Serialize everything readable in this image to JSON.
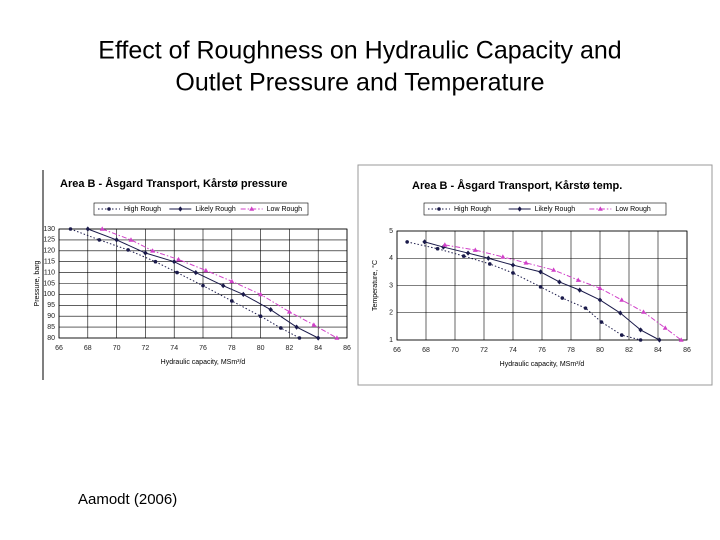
{
  "slide_title": [
    "Effect of Roughness on Hydraulic Capacity and",
    "Outlet Pressure and Temperature"
  ],
  "citation": "Aamodt (2006)",
  "chart_data": [
    {
      "type": "line",
      "title": "Area B - Åsgard Transport, Kårstø pressure",
      "x_label": "Hydraulic capacity, MSm³/d",
      "y_label": "Pressure, barg",
      "xlim": [
        66,
        86
      ],
      "xticks": [
        66,
        68,
        70,
        72,
        74,
        76,
        78,
        80,
        82,
        84,
        86
      ],
      "ylim": [
        80,
        130
      ],
      "yticks": [
        80,
        85,
        90,
        95,
        100,
        105,
        110,
        115,
        120,
        125,
        130
      ],
      "grid": true,
      "series": [
        {
          "name": "High Rough",
          "color": "#1a1a4a",
          "line_style": "dotted",
          "marker": "circle",
          "x": [
            66.8,
            68.8,
            70.8,
            72.7,
            74.2,
            76,
            78,
            80,
            81.4,
            82.7
          ],
          "values": [
            130,
            125,
            120.4,
            115,
            110,
            104,
            97,
            90,
            84.6,
            80
          ]
        },
        {
          "name": "Likely Rough",
          "color": "#1a1a4a",
          "line_style": "solid",
          "marker": "diamond",
          "x": [
            68,
            70,
            72,
            74,
            75.5,
            77.4,
            78.8,
            80.7,
            82.5,
            84
          ],
          "values": [
            130,
            125,
            119,
            115,
            110,
            104,
            100,
            93,
            85,
            80
          ]
        },
        {
          "name": "Low Rough",
          "color": "#d040c8",
          "line_style": "dashdot",
          "marker": "triangle",
          "x": [
            69,
            71,
            72.5,
            74.3,
            76.2,
            78,
            80,
            82,
            83.7,
            85.3
          ],
          "values": [
            130,
            125,
            120,
            116,
            111,
            106,
            100,
            92,
            86,
            80
          ]
        }
      ]
    },
    {
      "type": "line",
      "title": "Area B - Åsgard Transport, Kårstø temp.",
      "x_label": "Hydraulic capacity, MSm³/d",
      "y_label": "Temperature, °C",
      "xlim": [
        66,
        86
      ],
      "xticks": [
        66,
        68,
        70,
        72,
        74,
        76,
        78,
        80,
        82,
        84,
        86
      ],
      "ylim": [
        1,
        5
      ],
      "yticks": [
        1,
        2,
        3,
        4,
        5
      ],
      "grid": true,
      "series": [
        {
          "name": "High Rough",
          "color": "#1a1a4a",
          "line_style": "dotted",
          "marker": "circle",
          "x": [
            66.7,
            68.8,
            70.6,
            72.4,
            74,
            75.9,
            77.4,
            79,
            80.1,
            81.5,
            82.8
          ],
          "values": [
            4.6,
            4.35,
            4.08,
            3.79,
            3.46,
            2.95,
            2.54,
            2.17,
            1.66,
            1.18,
            1
          ]
        },
        {
          "name": "Likely Rough",
          "color": "#1a1a4a",
          "line_style": "solid",
          "marker": "diamond",
          "x": [
            67.9,
            69.2,
            70.9,
            72.3,
            74,
            75.9,
            77.2,
            78.6,
            80,
            81.4,
            82.8,
            84.1
          ],
          "values": [
            4.6,
            4.41,
            4.19,
            4,
            3.75,
            3.5,
            3.13,
            2.83,
            2.47,
            1.99,
            1.37,
            1
          ]
        },
        {
          "name": "Low Rough",
          "color": "#d040c8",
          "line_style": "dashdot",
          "marker": "triangle",
          "x": [
            69.3,
            71.4,
            73.3,
            74.9,
            76.8,
            78.5,
            80,
            81.5,
            83,
            84.5,
            85.6
          ],
          "values": [
            4.49,
            4.3,
            4.05,
            3.83,
            3.57,
            3.2,
            2.9,
            2.47,
            2.03,
            1.44,
            1
          ]
        }
      ]
    }
  ]
}
